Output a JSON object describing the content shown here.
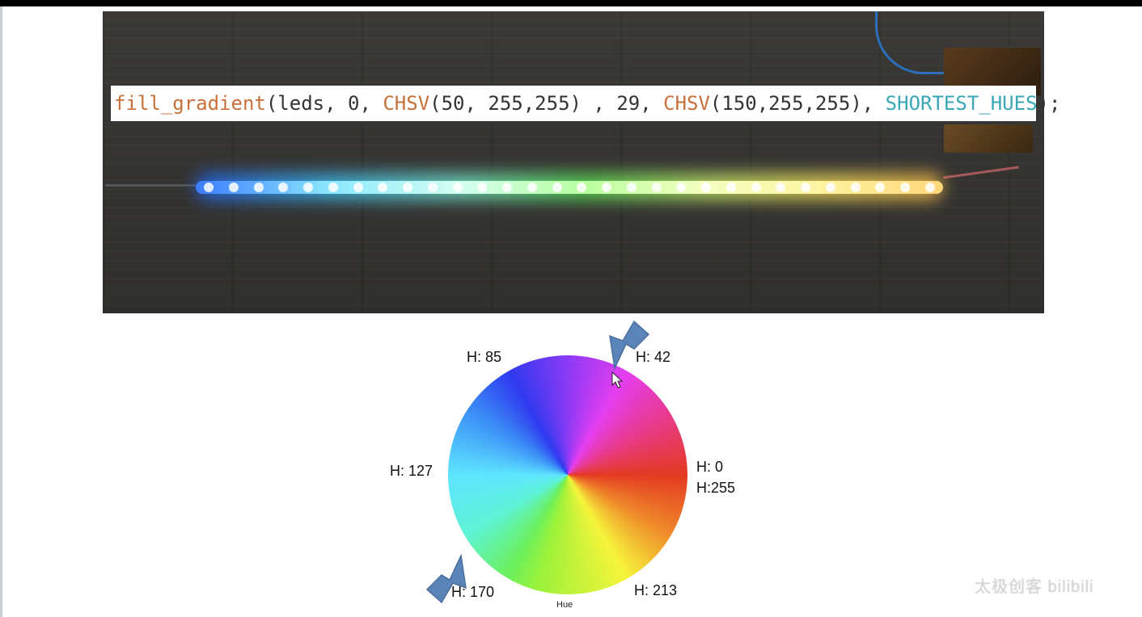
{
  "code": {
    "function": "fill_gradient",
    "part1": "(leds, 0, ",
    "chsv1_kw": "CHSV",
    "chsv1_args": "(50, 255,255) , 29, ",
    "chsv2_kw": "CHSV",
    "chsv2_args": "(150,255,255), ",
    "direction": "SHORTEST_HUES",
    "end": ");"
  },
  "wheel": {
    "labels": {
      "h85": "H: 85",
      "h42": "H: 42",
      "h0": "H: 0",
      "h255": "H:255",
      "h127": "H: 127",
      "h170": "H: 170",
      "h213": "H: 213"
    },
    "caption": "Hue"
  },
  "watermark": "太极创客 bilibili",
  "colors": {
    "arrow": "#5b84b8",
    "code_keyword": "#c8703a",
    "code_constant": "#3aa7b5"
  },
  "icons": {
    "arrow_top": "arrow-down-left-icon",
    "arrow_bottom": "arrow-up-right-icon",
    "cursor": "mouse-cursor-icon"
  }
}
